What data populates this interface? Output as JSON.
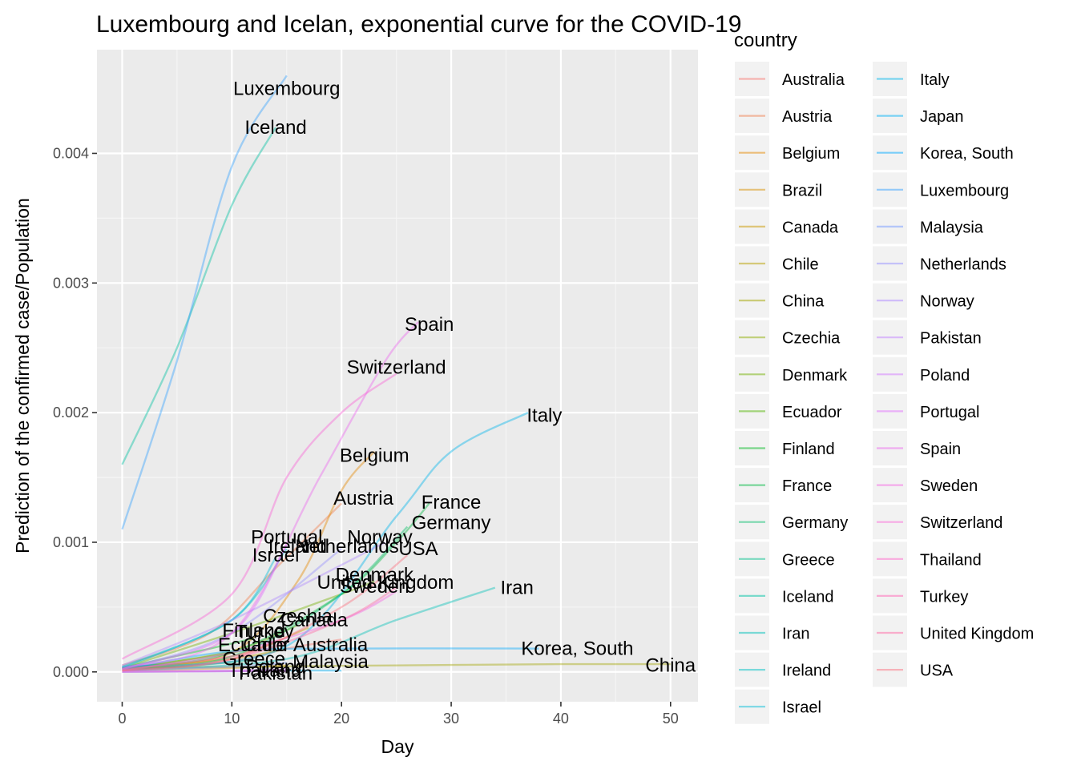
{
  "chart_data": {
    "type": "line",
    "title": "Luxembourg and Icelan, exponential curve for the COVID-19",
    "xlabel": "Day",
    "ylabel": "Prediction of the confirmed case/Population",
    "xlim": [
      -2.3,
      52.5
    ],
    "ylim": [
      -0.00023,
      0.0048
    ],
    "x_ticks": [
      0,
      10,
      20,
      30,
      40,
      50
    ],
    "x_tick_labels": [
      "0",
      "10",
      "20",
      "30",
      "40",
      "50"
    ],
    "y_ticks": [
      0,
      0.001,
      0.002,
      0.003,
      0.004
    ],
    "y_tick_labels": [
      "0.000",
      "0.001",
      "0.002",
      "0.003",
      "0.004"
    ],
    "grid": true,
    "legend": {
      "title": "country",
      "placement": "right",
      "columns": 2
    },
    "series": [
      {
        "name": "Australia",
        "color": "#F8766D",
        "x": [
          0,
          10,
          15,
          20
        ],
        "y": [
          1e-05,
          8e-05,
          0.00018,
          0.00025
        ],
        "label": "Australia",
        "label_xy": [
          19,
          0.00021
        ]
      },
      {
        "name": "Austria",
        "color": "#F07E4D",
        "x": [
          0,
          8,
          14,
          20
        ],
        "y": [
          5e-05,
          0.0003,
          0.0008,
          0.0013
        ],
        "label": "Austria",
        "label_xy": [
          22,
          0.00134
        ]
      },
      {
        "name": "Belgium",
        "color": "#E58700",
        "x": [
          0,
          10,
          16,
          20,
          23
        ],
        "y": [
          3e-05,
          0.00015,
          0.0007,
          0.0014,
          0.0017
        ],
        "label": "Belgium",
        "label_xy": [
          23,
          0.00167
        ]
      },
      {
        "name": "Brazil",
        "color": "#D89000",
        "x": [
          0,
          10,
          15
        ],
        "y": [
          1e-05,
          3e-05,
          5e-05
        ],
        "label": null,
        "label_xy": null
      },
      {
        "name": "Canada",
        "color": "#C99800",
        "x": [
          0,
          10,
          17
        ],
        "y": [
          2e-05,
          0.00012,
          0.00034
        ],
        "label": "Canada",
        "label_xy": [
          17.5,
          0.0004
        ]
      },
      {
        "name": "Chile",
        "color": "#B79F00",
        "x": [
          0,
          10,
          15
        ],
        "y": [
          1e-05,
          0.0001,
          0.00018
        ],
        "label": "Chile",
        "label_xy": [
          13,
          0.00021
        ]
      },
      {
        "name": "China",
        "color": "#A3A500",
        "x": [
          0,
          10,
          25,
          40,
          50
        ],
        "y": [
          3e-05,
          4e-05,
          5e-05,
          6e-05,
          6e-05
        ],
        "label": "China",
        "label_xy": [
          50,
          5e-05
        ]
      },
      {
        "name": "Czechia",
        "color": "#8DAB00",
        "x": [
          0,
          10,
          16
        ],
        "y": [
          2e-05,
          0.00016,
          0.00036
        ],
        "label": "Czechia",
        "label_xy": [
          16,
          0.00043
        ]
      },
      {
        "name": "Denmark",
        "color": "#72B000",
        "x": [
          0,
          10,
          20,
          23
        ],
        "y": [
          3e-05,
          0.0003,
          0.0006,
          0.0007
        ],
        "label": "Denmark",
        "label_xy": [
          23,
          0.00075
        ]
      },
      {
        "name": "Ecuador",
        "color": "#4FB300",
        "x": [
          0,
          8,
          12
        ],
        "y": [
          2e-05,
          0.00012,
          0.00018
        ],
        "label": "Ecuador",
        "label_xy": [
          12,
          0.00021
        ]
      },
      {
        "name": "Finland",
        "color": "#00B81F",
        "x": [
          0,
          8,
          12
        ],
        "y": [
          3e-05,
          0.00018,
          0.00026
        ],
        "label": "Finland",
        "label_xy": [
          12,
          0.00032
        ]
      },
      {
        "name": "France",
        "color": "#00BA42",
        "x": [
          0,
          10,
          20,
          25,
          28
        ],
        "y": [
          3e-05,
          0.00015,
          0.0006,
          0.001,
          0.0013
        ],
        "label": "France",
        "label_xy": [
          30,
          0.00131
        ]
      },
      {
        "name": "Germany",
        "color": "#00BE67",
        "x": [
          0,
          10,
          20,
          26
        ],
        "y": [
          2e-05,
          0.00012,
          0.0006,
          0.00112
        ],
        "label": "Germany",
        "label_xy": [
          30,
          0.00115
        ]
      },
      {
        "name": "Greece",
        "color": "#00C08B",
        "x": [
          0,
          8,
          12
        ],
        "y": [
          1e-05,
          6e-05,
          9e-05
        ],
        "label": "Greece",
        "label_xy": [
          12,
          0.0001
        ]
      },
      {
        "name": "Iceland",
        "color": "#00C1A3",
        "x": [
          0,
          5,
          10,
          14
        ],
        "y": [
          0.0016,
          0.0025,
          0.0036,
          0.0042
        ],
        "label": "Iceland",
        "label_xy": [
          14,
          0.0042
        ]
      },
      {
        "name": "Iran",
        "color": "#00C0B8",
        "x": [
          0,
          15,
          25,
          34
        ],
        "y": [
          1e-05,
          0.0001,
          0.0004,
          0.00065
        ],
        "label": "Iran",
        "label_xy": [
          36,
          0.00065
        ]
      },
      {
        "name": "Ireland",
        "color": "#00BFC4",
        "x": [
          0,
          10,
          15
        ],
        "y": [
          4e-05,
          0.0004,
          0.00095
        ],
        "label": "Ireland",
        "label_xy": [
          16,
          0.00097
        ]
      },
      {
        "name": "Israel",
        "color": "#00BCD8",
        "x": [
          0,
          10,
          14
        ],
        "y": [
          3e-05,
          0.0004,
          0.00088
        ],
        "label": "Israel",
        "label_xy": [
          14,
          0.0009
        ]
      },
      {
        "name": "Italy",
        "color": "#00B6EB",
        "x": [
          0,
          15,
          25,
          30,
          37
        ],
        "y": [
          4e-05,
          0.0002,
          0.0012,
          0.0017,
          0.002
        ],
        "label": "Italy",
        "label_xy": [
          38.5,
          0.00198
        ]
      },
      {
        "name": "Japan",
        "color": "#00B0F6",
        "x": [
          0,
          10,
          15,
          20
        ],
        "y": [
          1e-06,
          5e-06,
          1e-05,
          1e-05
        ],
        "label": null,
        "label_xy": null
      },
      {
        "name": "Korea, South",
        "color": "#00A9FF",
        "x": [
          0,
          10,
          20,
          38
        ],
        "y": [
          2e-05,
          0.00016,
          0.00018,
          0.00018
        ],
        "label": "Korea, South",
        "label_xy": [
          41.5,
          0.00018
        ]
      },
      {
        "name": "Luxembourg",
        "color": "#35A2FF",
        "x": [
          0,
          5,
          10,
          15
        ],
        "y": [
          0.0011,
          0.0024,
          0.0039,
          0.0046
        ],
        "label": "Luxembourg",
        "label_xy": [
          15,
          0.0045
        ]
      },
      {
        "name": "Malaysia",
        "color": "#7699FF",
        "x": [
          0,
          10,
          15
        ],
        "y": [
          1e-05,
          4e-05,
          7e-05
        ],
        "label": "Malaysia",
        "label_xy": [
          19,
          8e-05
        ]
      },
      {
        "name": "Netherlands",
        "color": "#9590FF",
        "x": [
          0,
          10,
          20
        ],
        "y": [
          2e-05,
          0.0003,
          0.00095
        ],
        "label": "Netherlands",
        "label_xy": [
          20.5,
          0.00097
        ]
      },
      {
        "name": "Norway",
        "color": "#AD88FF",
        "x": [
          0,
          10,
          24
        ],
        "y": [
          5e-05,
          0.0004,
          0.001
        ],
        "label": "Norway",
        "label_xy": [
          23.5,
          0.00104
        ]
      },
      {
        "name": "Pakistan",
        "color": "#C17FFF",
        "x": [
          0,
          10,
          15
        ],
        "y": [
          1e-06,
          5e-06,
          5e-06
        ],
        "label": "Pakistan",
        "label_xy": [
          14,
          -1e-05
        ]
      },
      {
        "name": "Poland",
        "color": "#D277FF",
        "x": [
          0,
          10,
          15
        ],
        "y": [
          2e-06,
          1e-05,
          2e-05
        ],
        "label": "Poland",
        "label_xy": [
          14,
          4e-05
        ]
      },
      {
        "name": "Portugal",
        "color": "#E16EFD",
        "x": [
          0,
          10,
          15
        ],
        "y": [
          2e-05,
          0.0003,
          0.00098
        ],
        "label": "Portugal",
        "label_xy": [
          15,
          0.00104
        ]
      },
      {
        "name": "Spain",
        "color": "#EC68EE",
        "x": [
          0,
          10,
          18,
          24,
          27
        ],
        "y": [
          3e-05,
          0.0003,
          0.0015,
          0.0024,
          0.0027
        ],
        "label": "Spain",
        "label_xy": [
          28,
          0.00268
        ]
      },
      {
        "name": "Sweden",
        "color": "#F564E3",
        "x": [
          0,
          10,
          20,
          25
        ],
        "y": [
          1e-05,
          0.00015,
          0.0004,
          0.00062
        ],
        "label": "Sweden",
        "label_xy": [
          23,
          0.00066
        ]
      },
      {
        "name": "Switzerland",
        "color": "#FB61D7",
        "x": [
          0,
          10,
          15,
          20,
          25
        ],
        "y": [
          0.0001,
          0.0006,
          0.0015,
          0.002,
          0.0023
        ],
        "label": "Switzerland",
        "label_xy": [
          25,
          0.00235
        ]
      },
      {
        "name": "Thailand",
        "color": "#FF61C9",
        "x": [
          0,
          10,
          15
        ],
        "y": [
          1e-06,
          5e-06,
          8e-06
        ],
        "label": "Thailand",
        "label_xy": [
          13,
          1e-05
        ]
      },
      {
        "name": "Turkey",
        "color": "#FF63B6",
        "x": [
          0,
          10,
          14
        ],
        "y": [
          2e-05,
          0.00012,
          0.00024
        ],
        "label": "Turkey",
        "label_xy": [
          13,
          0.00031
        ]
      },
      {
        "name": "United Kingdom",
        "color": "#FF67A4",
        "x": [
          0,
          10,
          20,
          25
        ],
        "y": [
          1e-05,
          0.0001,
          0.0004,
          0.00065
        ],
        "label": "United Kingdom",
        "label_xy": [
          24,
          0.00069
        ]
      },
      {
        "name": "USA",
        "color": "#FC717F",
        "x": [
          0,
          10,
          20,
          26
        ],
        "y": [
          1e-05,
          0.0001,
          0.0005,
          0.0009
        ],
        "label": "USA",
        "label_xy": [
          27,
          0.00095
        ]
      }
    ]
  }
}
